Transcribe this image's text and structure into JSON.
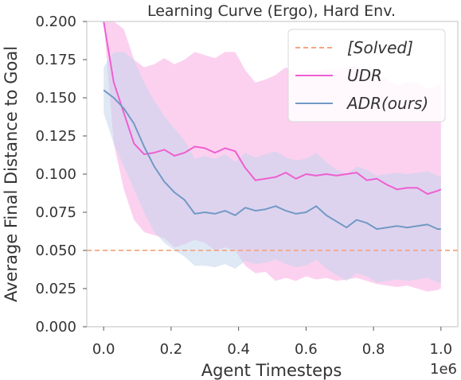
{
  "chart_data": {
    "type": "line",
    "title": "Learning Curve (Ergo), Hard Env.",
    "xlabel": "Agent Timesteps",
    "ylabel": "Average Final Distance to Goal",
    "x_scale_label": "1e6",
    "xlim": [
      -0.05,
      1.05
    ],
    "ylim": [
      0.0,
      0.2
    ],
    "xticks": [
      "0.0",
      "0.2",
      "0.4",
      "0.6",
      "0.8",
      "1.0"
    ],
    "yticks": [
      "0.000",
      "0.025",
      "0.050",
      "0.075",
      "0.100",
      "0.125",
      "0.150",
      "0.175",
      "0.200"
    ],
    "grid": false,
    "legend_position": "top-right",
    "legend": [
      "[Solved]",
      "UDR",
      "ADR(ours)"
    ],
    "solved_threshold": 0.05,
    "colors": {
      "solved": "#f4a582",
      "udr": "#ee5fd1",
      "udr_band": "#fbc9ec",
      "adr": "#7299c6",
      "adr_band": "#c5d6ec",
      "frame": "#cccccc"
    },
    "x": [
      0.0,
      0.03,
      0.06,
      0.09,
      0.12,
      0.15,
      0.18,
      0.21,
      0.24,
      0.27,
      0.3,
      0.33,
      0.36,
      0.39,
      0.42,
      0.45,
      0.48,
      0.51,
      0.54,
      0.57,
      0.6,
      0.63,
      0.66,
      0.69,
      0.72,
      0.75,
      0.78,
      0.81,
      0.84,
      0.87,
      0.9,
      0.93,
      0.96,
      0.99,
      1.0
    ],
    "series": [
      {
        "name": "UDR",
        "values": [
          0.2,
          0.16,
          0.14,
          0.12,
          0.113,
          0.114,
          0.116,
          0.112,
          0.114,
          0.118,
          0.117,
          0.114,
          0.117,
          0.115,
          0.104,
          0.096,
          0.097,
          0.098,
          0.101,
          0.097,
          0.1,
          0.099,
          0.1,
          0.099,
          0.1,
          0.101,
          0.096,
          0.097,
          0.093,
          0.09,
          0.091,
          0.091,
          0.087,
          0.089,
          0.09
        ],
        "lower": [
          0.2,
          0.12,
          0.09,
          0.07,
          0.062,
          0.06,
          0.058,
          0.052,
          0.054,
          0.057,
          0.055,
          0.05,
          0.052,
          0.05,
          0.04,
          0.035,
          0.036,
          0.03,
          0.032,
          0.03,
          0.033,
          0.031,
          0.032,
          0.03,
          0.031,
          0.032,
          0.03,
          0.028,
          0.027,
          0.026,
          0.027,
          0.025,
          0.023,
          0.024,
          0.025
        ],
        "upper": [
          0.2,
          0.2,
          0.195,
          0.175,
          0.17,
          0.172,
          0.176,
          0.172,
          0.175,
          0.18,
          0.178,
          0.176,
          0.18,
          0.18,
          0.168,
          0.16,
          0.162,
          0.165,
          0.17,
          0.166,
          0.168,
          0.167,
          0.169,
          0.168,
          0.17,
          0.171,
          0.165,
          0.166,
          0.162,
          0.158,
          0.16,
          0.16,
          0.156,
          0.158,
          0.16
        ]
      },
      {
        "name": "ADR(ours)",
        "values": [
          0.155,
          0.15,
          0.143,
          0.133,
          0.118,
          0.105,
          0.095,
          0.088,
          0.083,
          0.074,
          0.075,
          0.074,
          0.076,
          0.073,
          0.078,
          0.076,
          0.077,
          0.079,
          0.076,
          0.074,
          0.075,
          0.079,
          0.073,
          0.069,
          0.065,
          0.07,
          0.068,
          0.064,
          0.065,
          0.066,
          0.065,
          0.066,
          0.067,
          0.064,
          0.064
        ],
        "lower": [
          0.14,
          0.12,
          0.105,
          0.09,
          0.075,
          0.062,
          0.055,
          0.05,
          0.046,
          0.04,
          0.04,
          0.039,
          0.041,
          0.038,
          0.043,
          0.041,
          0.042,
          0.044,
          0.041,
          0.039,
          0.04,
          0.044,
          0.038,
          0.034,
          0.03,
          0.035,
          0.033,
          0.029,
          0.03,
          0.031,
          0.03,
          0.031,
          0.032,
          0.029,
          0.029
        ],
        "upper": [
          0.17,
          0.18,
          0.18,
          0.175,
          0.16,
          0.148,
          0.138,
          0.13,
          0.122,
          0.11,
          0.112,
          0.11,
          0.113,
          0.108,
          0.114,
          0.111,
          0.113,
          0.115,
          0.111,
          0.109,
          0.11,
          0.114,
          0.108,
          0.103,
          0.1,
          0.105,
          0.103,
          0.099,
          0.1,
          0.101,
          0.1,
          0.101,
          0.102,
          0.099,
          0.099
        ]
      }
    ]
  }
}
